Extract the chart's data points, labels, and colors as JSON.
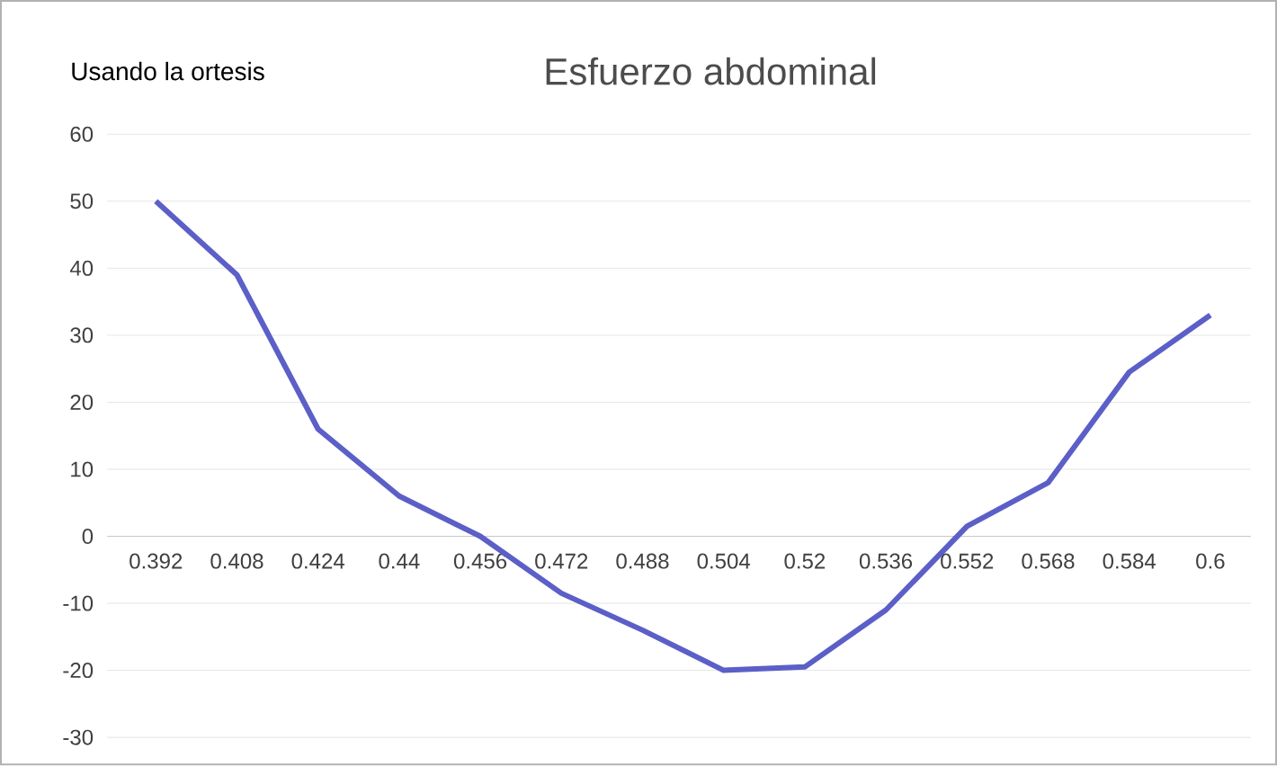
{
  "chart_data": {
    "type": "line",
    "title": "Esfuerzo abdominal",
    "annotations": [
      "Usando la ortesis"
    ],
    "categories": [
      "0.392",
      "0.408",
      "0.424",
      "0.44",
      "0.456",
      "0.472",
      "0.488",
      "0.504",
      "0.52",
      "0.536",
      "0.552",
      "0.568",
      "0.584",
      "0.6"
    ],
    "values": [
      50,
      39,
      16,
      6,
      0,
      -8.5,
      -14,
      -20,
      -19.5,
      -11,
      1.5,
      8,
      24.5,
      33
    ],
    "color": "#5b5fc7",
    "ylim": [
      -30,
      60
    ],
    "yticks": [
      -30,
      -20,
      -10,
      0,
      10,
      20,
      30,
      40,
      50,
      60
    ],
    "grid": "y",
    "marker": "none",
    "line_style": "solid"
  }
}
